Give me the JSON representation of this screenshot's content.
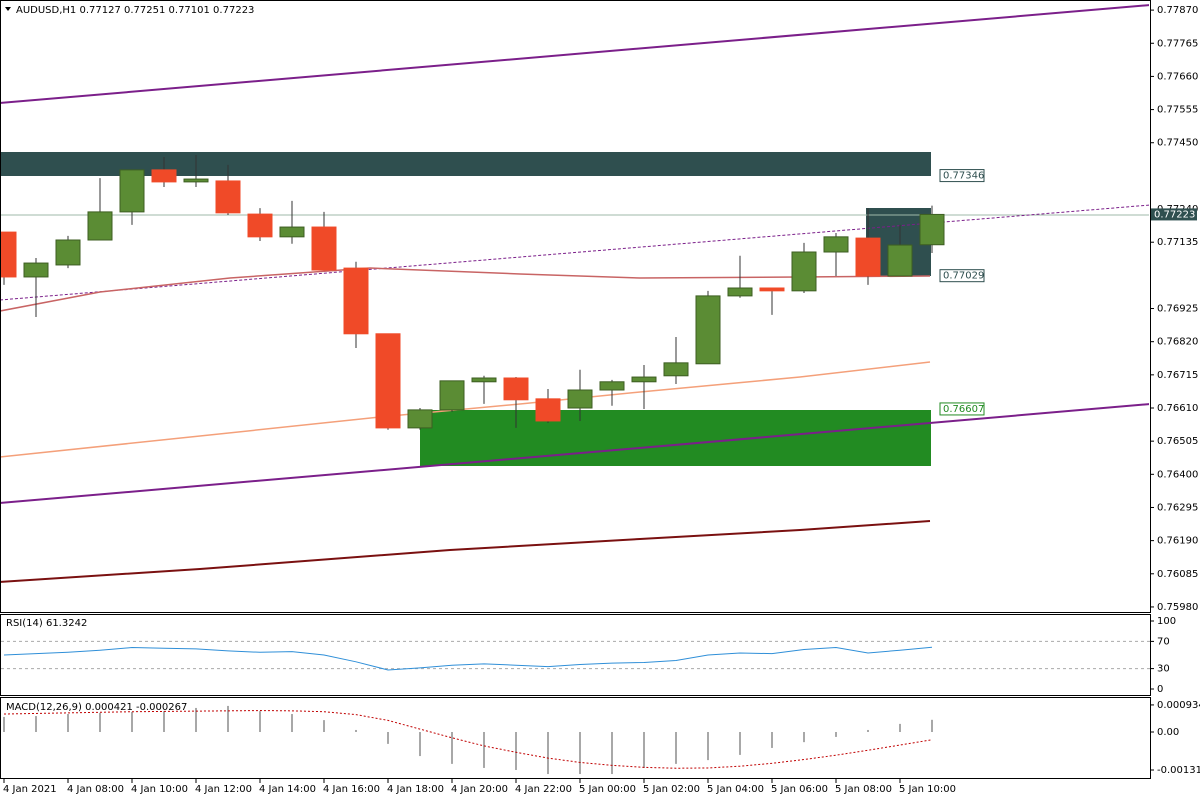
{
  "chart_data": [
    {
      "type": "candlestick",
      "title": "AUDUSD,H1  0.77127 0.77251 0.77101 0.77223",
      "categories": [
        "4 Jan 2021",
        null,
        "4 Jan 08:00",
        null,
        "4 Jan 10:00",
        null,
        "4 Jan 12:00",
        null,
        "4 Jan 14:00",
        null,
        "4 Jan 16:00",
        null,
        "4 Jan 18:00",
        null,
        "4 Jan 20:00",
        null,
        "4 Jan 22:00",
        null,
        "5 Jan 00:00",
        null,
        "5 Jan 02:00",
        null,
        "5 Jan 04:00",
        null,
        "5 Jan 06:00",
        null,
        "5 Jan 08:00",
        null,
        "5 Jan 10:00",
        null
      ],
      "open": [
        0.77167,
        0.77025,
        0.77063,
        0.77142,
        0.77231,
        0.77364,
        0.77326,
        0.77329,
        0.77224,
        0.77152,
        0.77183,
        0.77053,
        0.76845,
        0.76547,
        0.76604,
        0.76693,
        0.76705,
        0.76639,
        0.7661,
        0.76667,
        0.76693,
        0.76712,
        0.7675,
        0.76965,
        0.7699,
        0.76981,
        0.77104,
        0.77148,
        0.77028,
        0.77127
      ],
      "high": [
        0.77167,
        0.77085,
        0.77155,
        0.77338,
        0.77364,
        0.77405,
        0.77411,
        0.7738,
        0.77243,
        0.77266,
        0.77231,
        0.77073,
        0.76845,
        0.7661,
        0.76696,
        0.76712,
        0.76708,
        0.7667,
        0.76731,
        0.76699,
        0.76746,
        0.76835,
        0.76981,
        0.77092,
        0.7699,
        0.77133,
        0.77164,
        0.77243,
        0.7719,
        0.77251
      ],
      "low": [
        0.77,
        0.76898,
        0.77053,
        0.77142,
        0.7719,
        0.7731,
        0.7731,
        0.77221,
        0.77139,
        0.7713,
        0.77047,
        0.768,
        0.76541,
        0.76541,
        0.76598,
        0.76623,
        0.76547,
        0.76563,
        0.76569,
        0.76617,
        0.76607,
        0.76686,
        0.7675,
        0.76959,
        0.76905,
        0.76974,
        0.77028,
        0.77,
        0.77028,
        0.77101
      ],
      "close": [
        0.77025,
        0.77069,
        0.77142,
        0.77231,
        0.77364,
        0.77326,
        0.77335,
        0.77228,
        0.77152,
        0.77183,
        0.77047,
        0.76845,
        0.76547,
        0.76604,
        0.76696,
        0.76705,
        0.76636,
        0.76569,
        0.76667,
        0.76693,
        0.76708,
        0.76753,
        0.76965,
        0.7699,
        0.76981,
        0.77104,
        0.77152,
        0.77028,
        0.77126,
        0.77223
      ],
      "up_color": "#5b8c34",
      "down_color": "#f04a28",
      "ylim": [
        0.75964,
        0.77902
      ],
      "yticks": [
        {
          "value": 0.7787,
          "label": "0.77870"
        },
        {
          "value": 0.77765,
          "label": "0.77765"
        },
        {
          "value": 0.7766,
          "label": "0.77660"
        },
        {
          "value": 0.77555,
          "label": "0.77555"
        },
        {
          "value": 0.7745,
          "label": "0.77450"
        },
        {
          "value": 0.7724,
          "label": "0.77240"
        },
        {
          "value": 0.77135,
          "label": "0.77135"
        },
        {
          "value": 0.76925,
          "label": "0.76925"
        },
        {
          "value": 0.7682,
          "label": "0.76820"
        },
        {
          "value": 0.76715,
          "label": "0.76715"
        },
        {
          "value": 0.7661,
          "label": "0.76610"
        },
        {
          "value": 0.76505,
          "label": "0.76505"
        },
        {
          "value": 0.764,
          "label": "0.76400"
        },
        {
          "value": 0.76295,
          "label": "0.76295"
        },
        {
          "value": 0.7619,
          "label": "0.76190"
        },
        {
          "value": 0.76085,
          "label": "0.76085"
        },
        {
          "value": 0.7598,
          "label": "0.75980"
        }
      ],
      "price_tags": [
        {
          "value": 0.77346,
          "label": "0.77346",
          "color": "#2f4f4f"
        },
        {
          "value": 0.77029,
          "label": "0.77029",
          "color": "#2f4f4f"
        },
        {
          "value": 0.76607,
          "label": "0.76607",
          "color": "#228b22"
        }
      ],
      "current_price": {
        "value": 0.77223,
        "label": "0.77223",
        "color": "#2f4f4f"
      }
    },
    {
      "type": "line",
      "title": "RSI(14) 61.3242",
      "values": [
        50,
        52,
        54,
        57,
        61,
        60,
        59,
        56,
        54,
        55,
        50,
        40,
        28,
        31,
        35,
        37,
        35,
        33,
        36,
        38,
        39,
        42,
        50,
        53,
        52,
        58,
        61,
        53,
        57,
        61.3242
      ],
      "color": "#2f8fd8",
      "ylim": [
        -8.8,
        108.8
      ],
      "yticks": [
        100,
        70,
        30,
        0
      ],
      "levels": [
        70,
        30
      ]
    },
    {
      "type": "macd",
      "title": "MACD(12,26,9) 0.000421 -0.000267",
      "values": [
        0.00052,
        0.00055,
        0.00062,
        0.00066,
        0.00069,
        0.00072,
        0.00083,
        0.0009,
        0.00072,
        0.00062,
        0.00041,
        7e-05,
        -0.00041,
        -0.00083,
        -0.0011,
        -0.00124,
        -0.00131,
        -0.00145,
        -0.00145,
        -0.00145,
        -0.00124,
        -0.0011,
        -0.00097,
        -0.00079,
        -0.00055,
        -0.00035,
        -0.00017,
        7e-05,
        0.00028,
        0.000421
      ],
      "color": "#a8a8a8",
      "signal": {
        "values": [
          0.00062,
          0.00064,
          0.00066,
          0.00068,
          0.0007,
          0.00071,
          0.00072,
          0.00073,
          0.00074,
          0.00073,
          0.0007,
          0.0006,
          0.0004,
          0.0001,
          -0.0002,
          -0.00048,
          -0.0007,
          -0.0009,
          -0.00105,
          -0.00115,
          -0.00122,
          -0.00125,
          -0.00124,
          -0.00118,
          -0.00108,
          -0.00095,
          -0.0008,
          -0.00063,
          -0.00045,
          -0.000267
        ],
        "color": "#c00000"
      },
      "ylim": [
        -0.001587,
        0.001173
      ],
      "yticks": [
        0.000934,
        {
          "value": 0,
          "label": "0.00"
        },
        -0.001311
      ]
    }
  ]
}
